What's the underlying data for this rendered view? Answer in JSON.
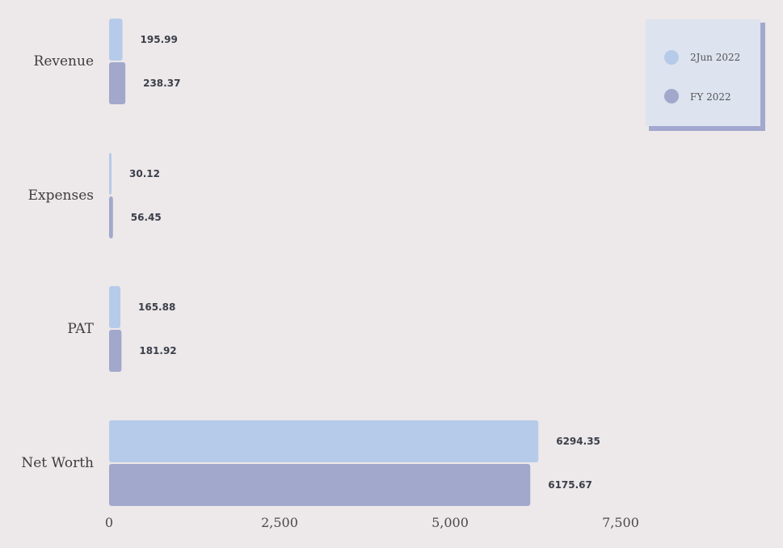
{
  "chart_data": {
    "type": "bar",
    "orientation": "horizontal",
    "categories": [
      "Revenue",
      "Expenses",
      "PAT",
      "Net Worth"
    ],
    "series": [
      {
        "name": "2Jun 2022",
        "color": "#b6cbe9",
        "values": [
          195.99,
          30.12,
          165.88,
          6294.35
        ]
      },
      {
        "name": "FY 2022",
        "color": "#a1a8cc",
        "values": [
          238.37,
          56.45,
          181.92,
          6175.67
        ]
      }
    ],
    "value_labels": [
      [
        "195.99",
        "30.12",
        "165.88",
        "6294.35"
      ],
      [
        "238.37",
        "56.45",
        "181.92",
        "6175.67"
      ]
    ],
    "xticks": [
      0,
      2500,
      5000,
      7500
    ],
    "xtick_labels": [
      "0",
      "2,500",
      "5,000",
      "7,500"
    ],
    "xlim": [
      0,
      7500
    ],
    "grid": false,
    "legend_position": "top-right"
  }
}
